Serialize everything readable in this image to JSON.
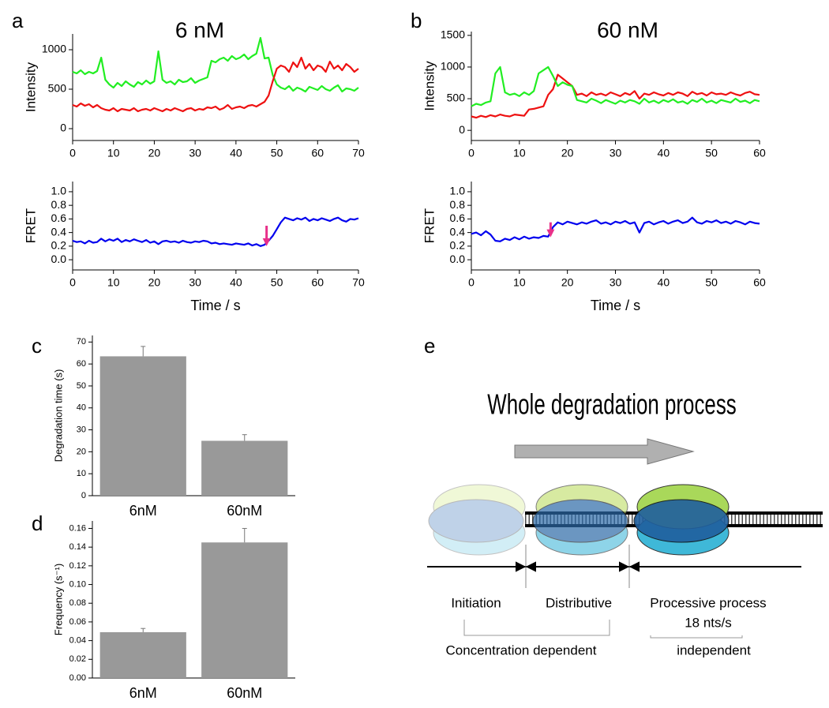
{
  "chart_data": [
    {
      "type": "line",
      "panel": "a",
      "title": "6 nM",
      "ylabel": "Intensity",
      "xlim": [
        0,
        70
      ],
      "xticks": [
        0,
        10,
        20,
        30,
        40,
        50,
        60,
        70
      ],
      "ylim": [
        -150,
        1200
      ],
      "yticks": [
        0,
        500,
        1000
      ],
      "x": [
        0,
        1,
        2,
        3,
        4,
        5,
        6,
        7,
        8,
        9,
        10,
        11,
        12,
        13,
        14,
        15,
        16,
        17,
        18,
        19,
        20,
        21,
        22,
        23,
        24,
        25,
        26,
        27,
        28,
        29,
        30,
        31,
        32,
        33,
        34,
        35,
        36,
        37,
        38,
        39,
        40,
        41,
        42,
        43,
        44,
        45,
        46,
        47,
        48,
        49,
        50,
        51,
        52,
        53,
        54,
        55,
        56,
        57,
        58,
        59,
        60,
        61,
        62,
        63,
        64,
        65,
        66,
        67,
        68,
        69,
        70
      ],
      "series": [
        {
          "color": "#22ee22",
          "values": [
            720,
            700,
            740,
            690,
            720,
            700,
            730,
            900,
            620,
            560,
            520,
            580,
            540,
            600,
            560,
            530,
            590,
            560,
            610,
            570,
            600,
            980,
            620,
            580,
            600,
            560,
            620,
            590,
            600,
            640,
            580,
            610,
            630,
            650,
            860,
            840,
            880,
            900,
            860,
            920,
            880,
            900,
            940,
            880,
            920,
            950,
            1150,
            890,
            900,
            680,
            560,
            520,
            500,
            540,
            480,
            520,
            500,
            470,
            530,
            510,
            490,
            540,
            500,
            480,
            520,
            550,
            470,
            510,
            500,
            480,
            520
          ]
        },
        {
          "color": "#ee1111",
          "values": [
            300,
            280,
            320,
            290,
            310,
            270,
            300,
            260,
            240,
            230,
            260,
            220,
            250,
            240,
            230,
            260,
            220,
            240,
            250,
            230,
            260,
            240,
            220,
            250,
            230,
            260,
            240,
            220,
            250,
            260,
            230,
            250,
            240,
            270,
            260,
            280,
            240,
            260,
            300,
            250,
            270,
            280,
            260,
            290,
            300,
            280,
            310,
            340,
            420,
            600,
            760,
            800,
            780,
            720,
            840,
            780,
            900,
            760,
            820,
            740,
            800,
            780,
            720,
            850,
            760,
            800,
            740,
            820,
            780,
            720,
            760
          ]
        }
      ]
    },
    {
      "type": "line",
      "ylabel": "FRET",
      "xlabel": "Time / s",
      "xlim": [
        0,
        70
      ],
      "xticks": [
        0,
        10,
        20,
        30,
        40,
        50,
        60,
        70
      ],
      "ylim": [
        -0.15,
        1.15
      ],
      "yticks": [
        {
          "value": 0,
          "label": "0.0"
        },
        0.2,
        0.4,
        0.6,
        0.8,
        {
          "value": 1,
          "label": "1.0"
        }
      ],
      "arrow": {
        "x": 47.5,
        "y": [
          0.5,
          0.2
        ],
        "color": "#e8308a"
      },
      "x": [
        0,
        1,
        2,
        3,
        4,
        5,
        6,
        7,
        8,
        9,
        10,
        11,
        12,
        13,
        14,
        15,
        16,
        17,
        18,
        19,
        20,
        21,
        22,
        23,
        24,
        25,
        26,
        27,
        28,
        29,
        30,
        31,
        32,
        33,
        34,
        35,
        36,
        37,
        38,
        39,
        40,
        41,
        42,
        43,
        44,
        45,
        46,
        47,
        48,
        49,
        50,
        51,
        52,
        53,
        54,
        55,
        56,
        57,
        58,
        59,
        60,
        61,
        62,
        63,
        64,
        65,
        66,
        67,
        68,
        69,
        70
      ],
      "series": [
        {
          "color": "#0000ee",
          "values": [
            0.28,
            0.26,
            0.27,
            0.24,
            0.28,
            0.25,
            0.26,
            0.31,
            0.27,
            0.3,
            0.28,
            0.31,
            0.26,
            0.29,
            0.27,
            0.3,
            0.28,
            0.26,
            0.29,
            0.25,
            0.27,
            0.23,
            0.27,
            0.28,
            0.26,
            0.27,
            0.25,
            0.28,
            0.26,
            0.25,
            0.27,
            0.26,
            0.28,
            0.27,
            0.24,
            0.25,
            0.23,
            0.24,
            0.23,
            0.22,
            0.24,
            0.23,
            0.22,
            0.24,
            0.21,
            0.23,
            0.2,
            0.22,
            0.28,
            0.35,
            0.45,
            0.55,
            0.62,
            0.6,
            0.58,
            0.61,
            0.59,
            0.62,
            0.57,
            0.6,
            0.58,
            0.61,
            0.59,
            0.57,
            0.6,
            0.62,
            0.58,
            0.56,
            0.6,
            0.59,
            0.61
          ]
        }
      ]
    },
    {
      "type": "line",
      "panel": "b",
      "title": "60 nM",
      "ylabel": "Intensity",
      "xlim": [
        0,
        60
      ],
      "xticks": [
        0,
        10,
        20,
        30,
        40,
        50,
        60
      ],
      "ylim": [
        -160,
        1560
      ],
      "yticks": [
        0,
        500,
        1000,
        1500
      ],
      "x": [
        0,
        1,
        2,
        3,
        4,
        5,
        6,
        7,
        8,
        9,
        10,
        11,
        12,
        13,
        14,
        15,
        16,
        17,
        18,
        19,
        20,
        21,
        22,
        23,
        24,
        25,
        26,
        27,
        28,
        29,
        30,
        31,
        32,
        33,
        34,
        35,
        36,
        37,
        38,
        39,
        40,
        41,
        42,
        43,
        44,
        45,
        46,
        47,
        48,
        49,
        50,
        51,
        52,
        53,
        54,
        55,
        56,
        57,
        58,
        59,
        60
      ],
      "series": [
        {
          "color": "#ee1111",
          "values": [
            220,
            200,
            230,
            210,
            240,
            220,
            250,
            230,
            220,
            250,
            240,
            230,
            330,
            340,
            360,
            380,
            560,
            650,
            880,
            820,
            760,
            700,
            560,
            580,
            540,
            600,
            560,
            580,
            550,
            600,
            570,
            540,
            590,
            560,
            620,
            500,
            580,
            560,
            600,
            570,
            550,
            590,
            560,
            600,
            580,
            540,
            610,
            570,
            590,
            550,
            600,
            570,
            580,
            560,
            600,
            570,
            550,
            590,
            610,
            570,
            560
          ]
        },
        {
          "color": "#22ee22",
          "values": [
            380,
            420,
            400,
            440,
            460,
            900,
            1000,
            600,
            560,
            580,
            540,
            600,
            560,
            620,
            900,
            950,
            1000,
            860,
            700,
            760,
            720,
            700,
            480,
            460,
            440,
            500,
            470,
            430,
            480,
            450,
            420,
            470,
            440,
            480,
            460,
            420,
            500,
            440,
            470,
            430,
            480,
            450,
            490,
            440,
            460,
            420,
            480,
            450,
            500,
            440,
            470,
            430,
            480,
            460,
            440,
            500,
            450,
            470,
            430,
            480,
            460
          ]
        }
      ]
    },
    {
      "type": "line",
      "ylabel": "FRET",
      "xlabel": "Time / s",
      "xlim": [
        0,
        60
      ],
      "xticks": [
        0,
        10,
        20,
        30,
        40,
        50,
        60
      ],
      "ylim": [
        -0.15,
        1.15
      ],
      "yticks": [
        {
          "value": 0,
          "label": "0.0"
        },
        0.2,
        0.4,
        0.6,
        0.8,
        {
          "value": 1,
          "label": "1.0"
        }
      ],
      "arrow": {
        "x": 16.5,
        "y": [
          0.55,
          0.33
        ],
        "color": "#e8308a"
      },
      "x": [
        0,
        1,
        2,
        3,
        4,
        5,
        6,
        7,
        8,
        9,
        10,
        11,
        12,
        13,
        14,
        15,
        16,
        17,
        18,
        19,
        20,
        21,
        22,
        23,
        24,
        25,
        26,
        27,
        28,
        29,
        30,
        31,
        32,
        33,
        34,
        35,
        36,
        37,
        38,
        39,
        40,
        41,
        42,
        43,
        44,
        45,
        46,
        47,
        48,
        49,
        50,
        51,
        52,
        53,
        54,
        55,
        56,
        57,
        58,
        59,
        60
      ],
      "series": [
        {
          "color": "#0000ee",
          "values": [
            0.38,
            0.4,
            0.36,
            0.42,
            0.37,
            0.28,
            0.27,
            0.31,
            0.29,
            0.33,
            0.3,
            0.34,
            0.31,
            0.33,
            0.32,
            0.35,
            0.34,
            0.48,
            0.55,
            0.52,
            0.56,
            0.54,
            0.52,
            0.55,
            0.53,
            0.56,
            0.58,
            0.53,
            0.55,
            0.52,
            0.56,
            0.54,
            0.57,
            0.53,
            0.55,
            0.4,
            0.54,
            0.56,
            0.52,
            0.55,
            0.57,
            0.53,
            0.56,
            0.58,
            0.54,
            0.56,
            0.62,
            0.55,
            0.53,
            0.57,
            0.55,
            0.58,
            0.54,
            0.56,
            0.53,
            0.57,
            0.55,
            0.52,
            0.56,
            0.54,
            0.53
          ]
        }
      ]
    },
    {
      "type": "bar",
      "panel": "c",
      "ylabel": "Degradation time (s)",
      "categories": [
        "6nM",
        "60nM"
      ],
      "values": [
        63.5,
        25
      ],
      "errors": [
        4.5,
        2.8
      ],
      "color": "#999999",
      "ylim": [
        0,
        73
      ],
      "yticks": [
        0,
        10,
        20,
        30,
        40,
        50,
        60,
        70
      ]
    },
    {
      "type": "bar",
      "panel": "d",
      "ylabel": "Frequency (s⁻¹)",
      "categories": [
        "6nM",
        "60nM"
      ],
      "values": [
        0.049,
        0.145
      ],
      "errors": [
        0.004,
        0.015
      ],
      "color": "#999999",
      "ylim": [
        0,
        0.168
      ],
      "yticks": [
        {
          "value": 0,
          "label": "0.00"
        },
        0.02,
        0.04,
        0.06,
        0.08,
        {
          "value": 0.1,
          "label": "0.10"
        },
        0.12,
        0.14,
        0.16
      ]
    }
  ],
  "diagram": {
    "panel": "e",
    "title": "Whole degradation process",
    "stages": [
      "Initiation",
      "Distributive",
      "Processive process"
    ],
    "rate": "18 nts/s",
    "dependent": "Concentration dependent",
    "independent": "independent"
  }
}
